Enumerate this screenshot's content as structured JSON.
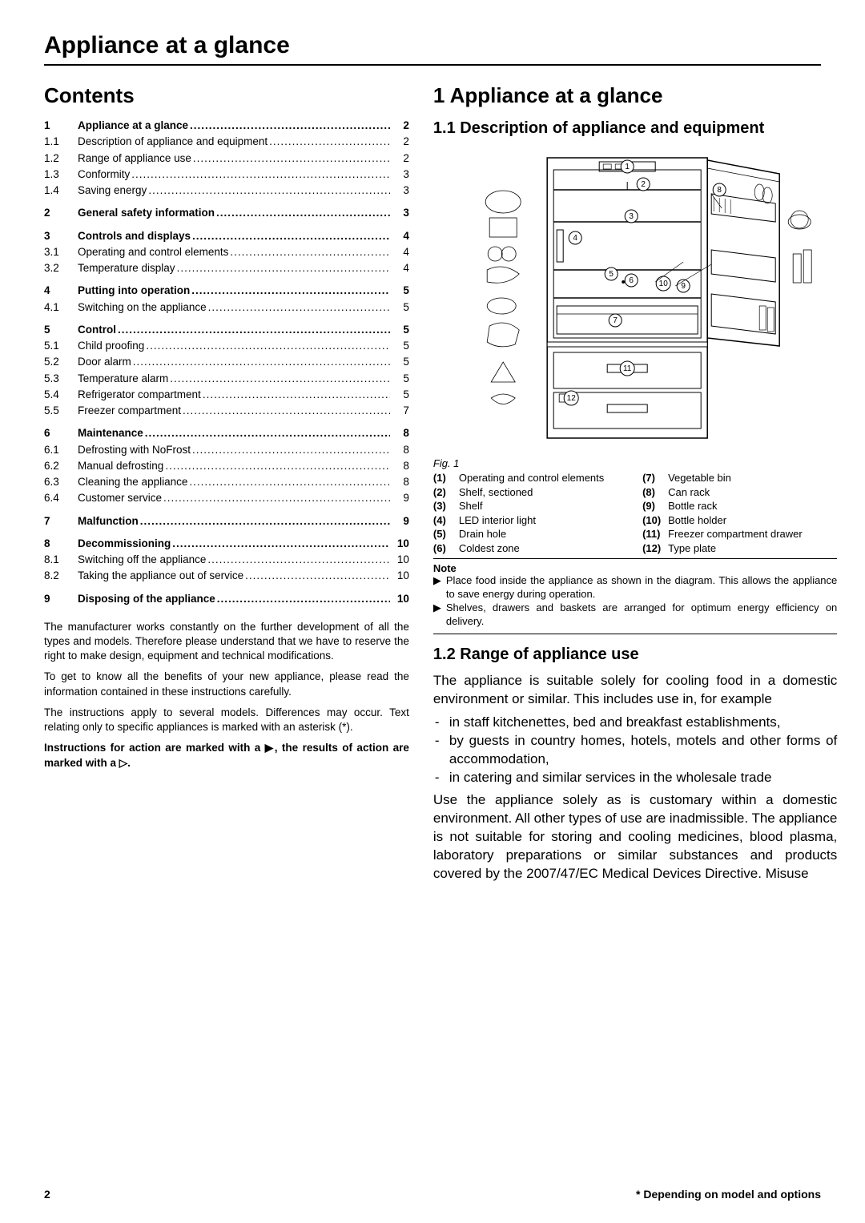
{
  "header": {
    "title": "Appliance at a glance"
  },
  "left": {
    "contents_title": "Contents",
    "toc": [
      {
        "rows": [
          {
            "n": "1",
            "t": "Appliance at a glance",
            "p": "2",
            "bold": true
          },
          {
            "n": "1.1",
            "t": "Description of appliance and equipment",
            "p": "2"
          },
          {
            "n": "1.2",
            "t": "Range of appliance use",
            "p": "2"
          },
          {
            "n": "1.3",
            "t": "Conformity",
            "p": "3"
          },
          {
            "n": "1.4",
            "t": "Saving energy",
            "p": "3"
          }
        ]
      },
      {
        "rows": [
          {
            "n": "2",
            "t": "General safety information",
            "p": "3",
            "bold": true
          }
        ]
      },
      {
        "rows": [
          {
            "n": "3",
            "t": "Controls and displays",
            "p": "4",
            "bold": true
          },
          {
            "n": "3.1",
            "t": "Operating and control elements",
            "p": "4"
          },
          {
            "n": "3.2",
            "t": "Temperature display",
            "p": "4"
          }
        ]
      },
      {
        "rows": [
          {
            "n": "4",
            "t": "Putting into operation",
            "p": "5",
            "bold": true
          },
          {
            "n": "4.1",
            "t": "Switching on the appliance",
            "p": "5"
          }
        ]
      },
      {
        "rows": [
          {
            "n": "5",
            "t": "Control",
            "p": "5",
            "bold": true
          },
          {
            "n": "5.1",
            "t": "Child proofing",
            "p": "5"
          },
          {
            "n": "5.2",
            "t": "Door alarm",
            "p": "5"
          },
          {
            "n": "5.3",
            "t": "Temperature alarm",
            "p": "5"
          },
          {
            "n": "5.4",
            "t": "Refrigerator compartment",
            "p": "5"
          },
          {
            "n": "5.5",
            "t": "Freezer compartment",
            "p": "7"
          }
        ]
      },
      {
        "rows": [
          {
            "n": "6",
            "t": "Maintenance",
            "p": "8",
            "bold": true
          },
          {
            "n": "6.1",
            "t": "Defrosting with NoFrost",
            "p": "8"
          },
          {
            "n": "6.2",
            "t": "Manual defrosting",
            "p": "8"
          },
          {
            "n": "6.3",
            "t": "Cleaning the appliance",
            "p": "8"
          },
          {
            "n": "6.4",
            "t": "Customer service",
            "p": "9"
          }
        ]
      },
      {
        "rows": [
          {
            "n": "7",
            "t": "Malfunction",
            "p": "9",
            "bold": true
          }
        ]
      },
      {
        "rows": [
          {
            "n": "8",
            "t": "Decommissioning",
            "p": "10",
            "bold": true
          },
          {
            "n": "8.1",
            "t": "Switching off the appliance",
            "p": "10"
          },
          {
            "n": "8.2",
            "t": "Taking the appliance out of service",
            "p": "10"
          }
        ]
      },
      {
        "rows": [
          {
            "n": "9",
            "t": "Disposing of the appliance",
            "p": "10",
            "bold": true
          }
        ]
      }
    ],
    "p1": "The manufacturer works constantly on the further development of all the types and models. Therefore please understand that we have to reserve the right to make design, equipment and technical modifications.",
    "p2": "To get to know all the benefits of your new appliance, please read the information contained in these instructions carefully.",
    "p3": "The instructions apply to several models. Differences may occur. Text relating only to specific appliances is marked with an asterisk (*).",
    "p4": "Instructions for action are marked with a ▶, the results of action are marked with a ▷."
  },
  "right": {
    "h1": "1 Appliance at a glance",
    "h2": "1.1 Description of appliance and equipment",
    "fig": "Fig. 1",
    "legend_left": [
      {
        "k": "(1)",
        "v": "Operating and control elements"
      },
      {
        "k": "(2)",
        "v": "Shelf, sectioned"
      },
      {
        "k": "(3)",
        "v": "Shelf"
      },
      {
        "k": "(4)",
        "v": "LED interior light"
      },
      {
        "k": "(5)",
        "v": "Drain hole"
      },
      {
        "k": "(6)",
        "v": "Coldest zone"
      }
    ],
    "legend_right": [
      {
        "k": "(7)",
        "v": "Vegetable bin"
      },
      {
        "k": "(8)",
        "v": "Can rack"
      },
      {
        "k": "(9)",
        "v": "Bottle rack"
      },
      {
        "k": "(10)",
        "v": "Bottle holder"
      },
      {
        "k": "(11)",
        "v": "Freezer compartment drawer"
      },
      {
        "k": "(12)",
        "v": "Type plate"
      }
    ],
    "note_title": "Note",
    "notes": [
      "Place food inside the appliance as shown in the diagram. This allows the appliance to save energy during operation.",
      "Shelves, drawers and baskets are arranged for optimum energy efficiency on delivery."
    ],
    "h3": "1.2 Range of appliance use",
    "body1": "The appliance is suitable solely for cooling food in a domestic environment or similar. This includes use in, for example",
    "bullets": [
      "in staff kitchenettes, bed and breakfast establishments,",
      "by guests in country homes, hotels, motels and other forms of accommodation,",
      "in catering and similar services in the wholesale trade"
    ],
    "body2": "Use the appliance solely as is customary within a domestic environment. All other types of use are inadmissible. The appliance is not suitable for storing and cooling medicines, blood plasma, laboratory preparations or similar substances and products covered by the 2007/47/EC Medical Devices Directive. Misuse"
  },
  "footer": {
    "page": "2",
    "note": "* Depending on model and options"
  }
}
